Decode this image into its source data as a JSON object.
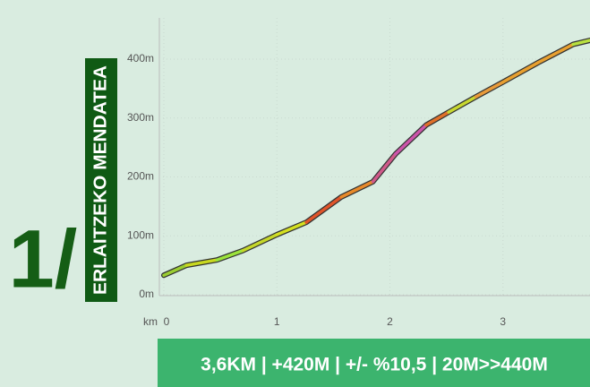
{
  "chart_data": {
    "type": "line",
    "stage_label": "1/",
    "title": "ERLAITZEKO MENDATEA",
    "subtitle": "3,6KM | +420M | +/- %10,5 | 20M>>440M",
    "xlabel": "km",
    "x": [
      0,
      0.2,
      0.47,
      0.7,
      1.0,
      1.26,
      1.57,
      1.85,
      2.05,
      2.32,
      2.52,
      2.76,
      3.0,
      3.31,
      3.62,
      3.77
    ],
    "series": [
      {
        "values": [
          33,
          50,
          59,
          75,
          102,
          123,
          166,
          192,
          239,
          288,
          310,
          336,
          361,
          394,
          425,
          432
        ],
        "segment_colors": [
          "#9acd32",
          "#c8d820",
          "#9be33c",
          "#c5d82a",
          "#d4e020",
          "#e0542a",
          "#e88a2a",
          "#d05a8a",
          "#cc55aa",
          "#e0702a",
          "#c8d830",
          "#e89a3a",
          "#e8a030",
          "#e8a030",
          "#b8e040"
        ]
      }
    ],
    "xlim": [
      0,
      3.77
    ],
    "ylim": [
      0,
      470
    ],
    "xticks": [
      0,
      1,
      2,
      3
    ],
    "yticks": [
      {
        "value": 0,
        "label": "0m"
      },
      {
        "value": 100,
        "label": "100m"
      },
      {
        "value": 200,
        "label": "200m"
      },
      {
        "value": 300,
        "label": "300m"
      },
      {
        "value": 400,
        "label": "400m"
      }
    ],
    "grid": true
  }
}
